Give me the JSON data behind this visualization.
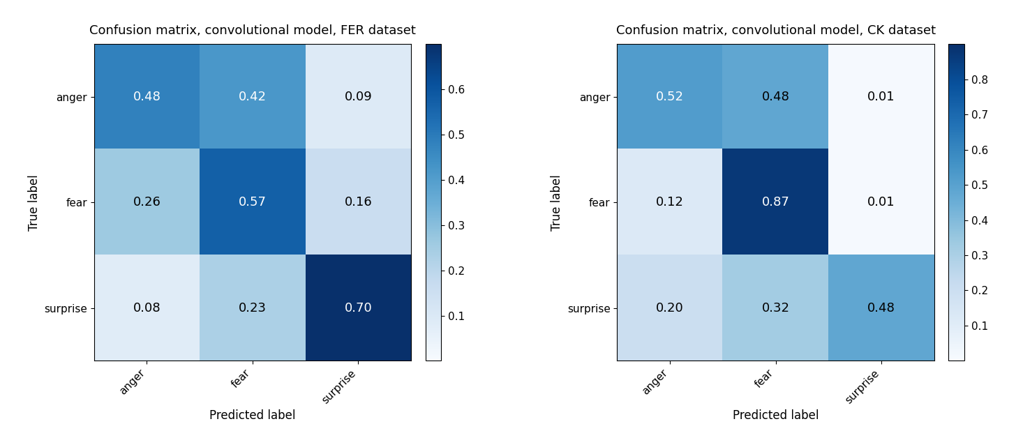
{
  "matrix1": [
    [
      0.48,
      0.42,
      0.09
    ],
    [
      0.26,
      0.57,
      0.16
    ],
    [
      0.08,
      0.23,
      0.7
    ]
  ],
  "matrix2": [
    [
      0.52,
      0.48,
      0.01
    ],
    [
      0.12,
      0.87,
      0.01
    ],
    [
      0.2,
      0.32,
      0.48
    ]
  ],
  "classes": [
    "anger",
    "fear",
    "surprise"
  ],
  "title1": "Confusion matrix, convolutional model, FER dataset",
  "title2": "Confusion matrix, convolutional model, CK dataset",
  "xlabel": "Predicted label",
  "ylabel": "True label",
  "vmin1": 0.0,
  "vmax1": 0.7,
  "vmin2": 0.0,
  "vmax2": 0.9,
  "cmap": "Blues",
  "colorbar_ticks1": [
    0.1,
    0.2,
    0.3,
    0.4,
    0.5,
    0.6
  ],
  "colorbar_ticks2": [
    0.1,
    0.2,
    0.3,
    0.4,
    0.5,
    0.6,
    0.7,
    0.8
  ],
  "fig_width": 14.56,
  "fig_height": 6.31,
  "title_fontsize": 13,
  "label_fontsize": 12,
  "tick_fontsize": 11,
  "cell_fontsize": 13,
  "text_color_threshold1": 0.42,
  "text_color_threshold2": 0.55
}
